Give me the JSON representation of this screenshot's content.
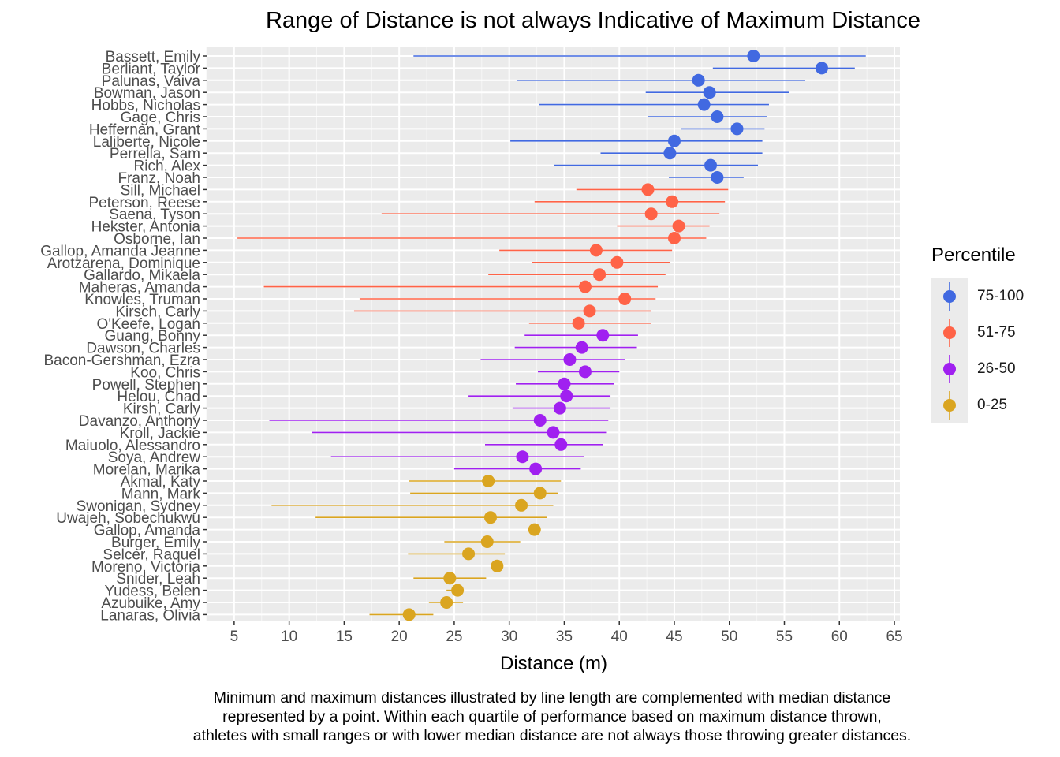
{
  "chart_data": {
    "type": "dot-range",
    "title": "Range of Distance is not always Indicative of Maximum Distance",
    "xlabel": "Distance (m)",
    "xlim": [
      2.5,
      65.5
    ],
    "xticks": [
      5,
      10,
      15,
      20,
      25,
      30,
      35,
      40,
      45,
      50,
      55,
      60,
      65
    ],
    "legend": {
      "title": "Percentile",
      "position": "right",
      "items": [
        {
          "label": "75-100",
          "color": "#4169E1"
        },
        {
          "label": "51-75",
          "color": "#FF6347"
        },
        {
          "label": "26-50",
          "color": "#A020F0"
        },
        {
          "label": "0-25",
          "color": "#DAA520"
        }
      ]
    },
    "caption": [
      "Minimum and maximum distances illustrated by line length are complemented with median distance",
      "represented by a point. Within each quartile of performance based on maximum distance thrown,",
      "athletes with small ranges or with lower median distance are not always those throwing greater distances."
    ],
    "athletes": [
      {
        "name": "Bassett, Emily",
        "min": 21.3,
        "max": 62.4,
        "median": 52.2,
        "group": "75-100"
      },
      {
        "name": "Berliant, Taylor",
        "min": 48.5,
        "max": 61.4,
        "median": 58.4,
        "group": "75-100"
      },
      {
        "name": "Palunas, Vaiva",
        "min": 30.7,
        "max": 56.9,
        "median": 47.2,
        "group": "75-100"
      },
      {
        "name": "Bowman, Jason",
        "min": 42.4,
        "max": 55.4,
        "median": 48.2,
        "group": "75-100"
      },
      {
        "name": "Hobbs, Nicholas",
        "min": 32.7,
        "max": 53.6,
        "median": 47.7,
        "group": "75-100"
      },
      {
        "name": "Gage, Chris",
        "min": 42.6,
        "max": 53.4,
        "median": 48.9,
        "group": "75-100"
      },
      {
        "name": "Heffernan, Grant",
        "min": 45.6,
        "max": 53.2,
        "median": 50.7,
        "group": "75-100"
      },
      {
        "name": "Laliberte, Nicole",
        "min": 30.1,
        "max": 53.0,
        "median": 45.0,
        "group": "75-100"
      },
      {
        "name": "Perrella, Sam",
        "min": 38.3,
        "max": 53.0,
        "median": 44.6,
        "group": "75-100"
      },
      {
        "name": "Rich, Alex",
        "min": 34.1,
        "max": 52.6,
        "median": 48.3,
        "group": "75-100"
      },
      {
        "name": "Franz, Noah",
        "min": 44.5,
        "max": 51.3,
        "median": 48.9,
        "group": "75-100"
      },
      {
        "name": "Sill, Michael",
        "min": 36.1,
        "max": 49.9,
        "median": 42.6,
        "group": "51-75"
      },
      {
        "name": "Peterson, Reese",
        "min": 32.3,
        "max": 49.6,
        "median": 44.8,
        "group": "51-75"
      },
      {
        "name": "Saena, Tyson",
        "min": 18.4,
        "max": 49.1,
        "median": 42.9,
        "group": "51-75"
      },
      {
        "name": "Hekster, Antonia",
        "min": 39.8,
        "max": 48.2,
        "median": 45.4,
        "group": "51-75"
      },
      {
        "name": "Osborne, Ian",
        "min": 5.3,
        "max": 47.9,
        "median": 45.0,
        "group": "51-75"
      },
      {
        "name": "Gallop, Amanda Jeanne",
        "min": 29.1,
        "max": 44.8,
        "median": 37.9,
        "group": "51-75"
      },
      {
        "name": "Arotzarena, Dominique",
        "min": 32.1,
        "max": 44.6,
        "median": 39.8,
        "group": "51-75"
      },
      {
        "name": "Gallardo, Mikaela",
        "min": 28.1,
        "max": 44.2,
        "median": 38.2,
        "group": "51-75"
      },
      {
        "name": "Maheras, Amanda",
        "min": 7.7,
        "max": 43.5,
        "median": 36.9,
        "group": "51-75"
      },
      {
        "name": "Knowles, Truman",
        "min": 16.4,
        "max": 43.3,
        "median": 40.5,
        "group": "51-75"
      },
      {
        "name": "Kirsch, Carly",
        "min": 15.9,
        "max": 42.9,
        "median": 37.3,
        "group": "51-75"
      },
      {
        "name": "O'Keefe, Logan",
        "min": 31.8,
        "max": 42.9,
        "median": 36.3,
        "group": "51-75"
      },
      {
        "name": "Guang, Bonny",
        "min": 31.4,
        "max": 41.7,
        "median": 38.5,
        "group": "26-50"
      },
      {
        "name": "Dawson, Charles",
        "min": 30.5,
        "max": 41.6,
        "median": 36.6,
        "group": "26-50"
      },
      {
        "name": "Bacon-Gershman, Ezra",
        "min": 27.4,
        "max": 40.5,
        "median": 35.5,
        "group": "26-50"
      },
      {
        "name": "Koo, Chris",
        "min": 32.6,
        "max": 40.0,
        "median": 36.9,
        "group": "26-50"
      },
      {
        "name": "Powell, Stephen",
        "min": 30.6,
        "max": 39.5,
        "median": 35.0,
        "group": "26-50"
      },
      {
        "name": "Helou, Chad",
        "min": 26.3,
        "max": 39.2,
        "median": 35.2,
        "group": "26-50"
      },
      {
        "name": "Kirsh, Carly",
        "min": 30.3,
        "max": 39.2,
        "median": 34.6,
        "group": "26-50"
      },
      {
        "name": "Davanzo, Anthony",
        "min": 8.2,
        "max": 39.0,
        "median": 32.8,
        "group": "26-50"
      },
      {
        "name": "Kroll, Jackie",
        "min": 12.1,
        "max": 38.8,
        "median": 34.0,
        "group": "26-50"
      },
      {
        "name": "Maiuolo, Alessandro",
        "min": 27.8,
        "max": 38.5,
        "median": 34.7,
        "group": "26-50"
      },
      {
        "name": "Soya, Andrew",
        "min": 13.8,
        "max": 36.8,
        "median": 31.2,
        "group": "26-50"
      },
      {
        "name": "Morelan, Marika",
        "min": 25.0,
        "max": 36.5,
        "median": 32.4,
        "group": "26-50"
      },
      {
        "name": "Akmal, Katy",
        "min": 20.9,
        "max": 34.7,
        "median": 28.1,
        "group": "0-25"
      },
      {
        "name": "Mann, Mark",
        "min": 21.0,
        "max": 34.4,
        "median": 32.8,
        "group": "0-25"
      },
      {
        "name": "Swonigan, Sydney",
        "min": 8.4,
        "max": 34.0,
        "median": 31.1,
        "group": "0-25"
      },
      {
        "name": "Uwajeh, Sobechukwu",
        "min": 12.4,
        "max": 33.4,
        "median": 28.3,
        "group": "0-25"
      },
      {
        "name": "Gallop, Amanda",
        "min": 32.3,
        "max": 32.3,
        "median": 32.3,
        "group": "0-25"
      },
      {
        "name": "Burger, Emily",
        "min": 24.1,
        "max": 31.0,
        "median": 28.0,
        "group": "0-25"
      },
      {
        "name": "Selcer, Raquel",
        "min": 20.8,
        "max": 29.6,
        "median": 26.3,
        "group": "0-25"
      },
      {
        "name": "Moreno, Victoria",
        "min": 28.9,
        "max": 28.9,
        "median": 28.9,
        "group": "0-25"
      },
      {
        "name": "Snider, Leah",
        "min": 21.3,
        "max": 27.9,
        "median": 24.6,
        "group": "0-25"
      },
      {
        "name": "Yudess, Belen",
        "min": 24.3,
        "max": 25.3,
        "median": 25.3,
        "group": "0-25"
      },
      {
        "name": "Azubuike, Amy",
        "min": 22.7,
        "max": 25.8,
        "median": 24.3,
        "group": "0-25"
      },
      {
        "name": "Lanaras, Olivia",
        "min": 17.3,
        "max": 23.1,
        "median": 20.9,
        "group": "0-25"
      }
    ]
  }
}
